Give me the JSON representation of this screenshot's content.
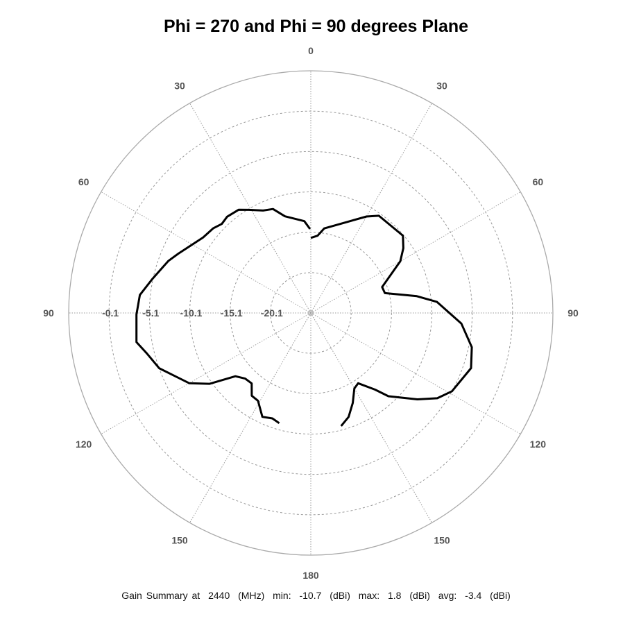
{
  "chart_data": {
    "type": "polar-line",
    "title": "Phi = 270 and Phi = 90 degrees Plane",
    "angle_direction": "0 at top, increasing clockwise on right half and counter-clockwise on left half",
    "angle_tick_labels": [
      "0",
      "30",
      "60",
      "90",
      "120",
      "150",
      "180",
      "150",
      "120",
      "90",
      "60",
      "30"
    ],
    "radial_tick_labels": [
      "-0.1",
      "-5.1",
      "-10.1",
      "-15.1",
      "-20.1"
    ],
    "radial_ticks": [
      -0.1,
      -5.1,
      -10.1,
      -15.1,
      -20.1
    ],
    "radial_range": [
      -25.1,
      4.9
    ],
    "grid": true,
    "line_color": "#000000",
    "grid_color": "#999999",
    "series": [
      {
        "side": "right",
        "points": [
          [
            0,
            -15.8
          ],
          [
            5,
            -15.5
          ],
          [
            9,
            -14.5
          ],
          [
            30,
            -11.3
          ],
          [
            35,
            -10.4
          ],
          [
            50,
            -10.2
          ],
          [
            55,
            -11.1
          ],
          [
            60,
            -12.3
          ],
          [
            70,
            -15.7
          ],
          [
            75,
            -15.6
          ],
          [
            81,
            -11.8
          ],
          [
            85,
            -9.4
          ],
          [
            94,
            -6.4
          ],
          [
            102,
            -4.7
          ],
          [
            109,
            -4.1
          ],
          [
            119,
            -5.1
          ],
          [
            124,
            -6.2
          ],
          [
            129,
            -8.1
          ],
          [
            137,
            -11.0
          ],
          [
            140,
            -12.7
          ],
          [
            146,
            -14.6
          ],
          [
            150,
            -14.3
          ],
          [
            155,
            -12.8
          ],
          [
            160,
            -11.4
          ],
          [
            165,
            -10.6
          ]
        ]
      },
      {
        "side": "left",
        "points": [
          [
            0.5,
            -14.7
          ],
          [
            4,
            -13.7
          ],
          [
            15,
            -12.7
          ],
          [
            20,
            -11.4
          ],
          [
            25,
            -11.1
          ],
          [
            31,
            -10.2
          ],
          [
            35,
            -9.5
          ],
          [
            41,
            -9.3
          ],
          [
            45,
            -9.5
          ],
          [
            49,
            -9.1
          ],
          [
            55,
            -8.8
          ],
          [
            66,
            -7.1
          ],
          [
            70,
            -6.3
          ],
          [
            78,
            -5.0
          ],
          [
            84,
            -3.8
          ],
          [
            90.5,
            -3.5
          ],
          [
            99.5,
            -3.2
          ],
          [
            104,
            -4.2
          ],
          [
            110,
            -5.1
          ],
          [
            120,
            -7.7
          ],
          [
            125,
            -9.8
          ],
          [
            130,
            -12.9
          ],
          [
            135,
            -13.6
          ],
          [
            140,
            -13.7
          ],
          [
            144.5,
            -12.5
          ],
          [
            149,
            -12.4
          ],
          [
            155,
            -10.9
          ],
          [
            160,
            -11.2
          ],
          [
            164,
            -10.9
          ]
        ]
      }
    ]
  },
  "footer": {
    "label": "Gain Summary at",
    "freq": "2440",
    "freq_unit": "(MHz)",
    "min_label": "min:",
    "min": "-10.7",
    "min_unit": "(dBi)",
    "max_label": "max:",
    "max": "1.8",
    "max_unit": "(dBi)",
    "avg_label": "avg:",
    "avg": "-3.4",
    "avg_unit": "(dBi)"
  }
}
